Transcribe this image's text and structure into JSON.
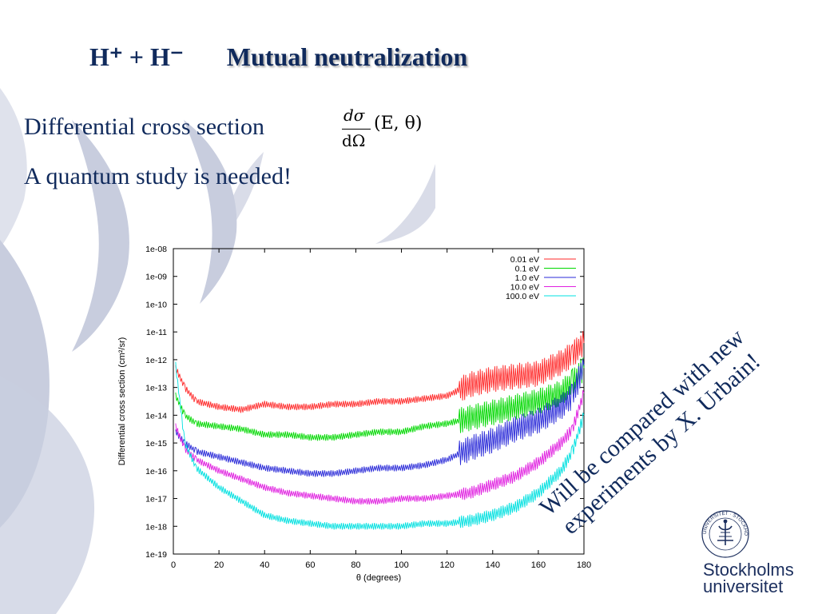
{
  "slide": {
    "title_formula": "H⁺ + H⁻",
    "title": "Mutual neutralization",
    "line1": "Differential cross section",
    "line2": "A quantum study is needed!",
    "equation": {
      "numerator": "dσ",
      "denominator": "dΩ",
      "args": "(E, θ)"
    },
    "note_line1": "Will be compared with new",
    "note_line2": "experiments by X. Urbain!",
    "logo": {
      "name_line1": "Stockholms",
      "name_line2": "universitet",
      "seal_text": "UNIVERSITET · STOCKHOLMS"
    }
  },
  "colors": {
    "text": "#102a5c",
    "bg_shape": "#bfc5d9"
  },
  "chart_data": {
    "type": "line",
    "xlabel": "θ (degrees)",
    "ylabel": "Differential cross section (cm²/sr)",
    "xlim": [
      0,
      180
    ],
    "ylim_log10": [
      -19,
      -8
    ],
    "x_ticks": [
      "0",
      "20",
      "40",
      "60",
      "80",
      "100",
      "120",
      "140",
      "160",
      "180"
    ],
    "y_ticks": [
      "1e-19",
      "1e-18",
      "1e-17",
      "1e-16",
      "1e-15",
      "1e-14",
      "1e-13",
      "1e-12",
      "1e-11",
      "1e-10",
      "1e-09",
      "1e-08"
    ],
    "y_scale": "log",
    "legend_position": "top-right",
    "grid": false,
    "series": [
      {
        "name": "0.01 eV",
        "color": "#ff2a2a",
        "points": [
          [
            1,
            -12.3
          ],
          [
            5,
            -13.0
          ],
          [
            10,
            -13.5
          ],
          [
            20,
            -13.7
          ],
          [
            30,
            -13.8
          ],
          [
            40,
            -13.6
          ],
          [
            50,
            -13.7
          ],
          [
            60,
            -13.7
          ],
          [
            70,
            -13.6
          ],
          [
            80,
            -13.6
          ],
          [
            90,
            -13.5
          ],
          [
            100,
            -13.5
          ],
          [
            110,
            -13.4
          ],
          [
            120,
            -13.3
          ],
          [
            130,
            -12.9
          ],
          [
            140,
            -12.7
          ],
          [
            150,
            -12.6
          ],
          [
            160,
            -12.5
          ],
          [
            170,
            -12.1
          ],
          [
            175,
            -11.8
          ],
          [
            180,
            -11.4
          ]
        ]
      },
      {
        "name": "0.1 eV",
        "color": "#00d800",
        "points": [
          [
            1,
            -13.3
          ],
          [
            5,
            -14.0
          ],
          [
            10,
            -14.3
          ],
          [
            20,
            -14.4
          ],
          [
            30,
            -14.5
          ],
          [
            40,
            -14.7
          ],
          [
            50,
            -14.7
          ],
          [
            60,
            -14.8
          ],
          [
            70,
            -14.8
          ],
          [
            80,
            -14.7
          ],
          [
            90,
            -14.6
          ],
          [
            100,
            -14.6
          ],
          [
            110,
            -14.4
          ],
          [
            120,
            -14.3
          ],
          [
            130,
            -14.1
          ],
          [
            140,
            -13.9
          ],
          [
            150,
            -13.7
          ],
          [
            160,
            -13.5
          ],
          [
            170,
            -13.2
          ],
          [
            175,
            -12.8
          ],
          [
            180,
            -12.3
          ]
        ]
      },
      {
        "name": "1.0 eV",
        "color": "#2a2ad8",
        "points": [
          [
            1,
            -14.6
          ],
          [
            5,
            -15.0
          ],
          [
            10,
            -15.3
          ],
          [
            20,
            -15.5
          ],
          [
            30,
            -15.7
          ],
          [
            40,
            -15.9
          ],
          [
            50,
            -16.0
          ],
          [
            60,
            -16.1
          ],
          [
            70,
            -16.1
          ],
          [
            80,
            -16.0
          ],
          [
            90,
            -15.9
          ],
          [
            100,
            -15.9
          ],
          [
            110,
            -15.8
          ],
          [
            120,
            -15.6
          ],
          [
            130,
            -15.2
          ],
          [
            140,
            -14.9
          ],
          [
            150,
            -14.5
          ],
          [
            160,
            -14.2
          ],
          [
            170,
            -13.7
          ],
          [
            175,
            -13.3
          ],
          [
            180,
            -12.2
          ]
        ]
      },
      {
        "name": "10.0 eV",
        "color": "#e020e0",
        "points": [
          [
            1,
            -14.4
          ],
          [
            5,
            -15.2
          ],
          [
            10,
            -15.6
          ],
          [
            20,
            -16.0
          ],
          [
            30,
            -16.3
          ],
          [
            40,
            -16.6
          ],
          [
            50,
            -16.8
          ],
          [
            60,
            -16.9
          ],
          [
            70,
            -17.0
          ],
          [
            80,
            -17.1
          ],
          [
            90,
            -17.1
          ],
          [
            100,
            -17.0
          ],
          [
            110,
            -17.0
          ],
          [
            120,
            -16.9
          ],
          [
            130,
            -16.8
          ],
          [
            140,
            -16.5
          ],
          [
            150,
            -16.2
          ],
          [
            160,
            -15.7
          ],
          [
            170,
            -15.0
          ],
          [
            175,
            -14.5
          ],
          [
            180,
            -13.2
          ]
        ]
      },
      {
        "name": "100.0 eV",
        "color": "#00e0e0",
        "points": [
          [
            1,
            -12.2
          ],
          [
            5,
            -15.0
          ],
          [
            10,
            -15.9
          ],
          [
            20,
            -16.6
          ],
          [
            30,
            -17.1
          ],
          [
            40,
            -17.6
          ],
          [
            50,
            -17.8
          ],
          [
            60,
            -17.9
          ],
          [
            70,
            -18.0
          ],
          [
            80,
            -18.0
          ],
          [
            90,
            -18.0
          ],
          [
            100,
            -18.0
          ],
          [
            110,
            -17.9
          ],
          [
            120,
            -17.9
          ],
          [
            130,
            -17.8
          ],
          [
            140,
            -17.6
          ],
          [
            150,
            -17.3
          ],
          [
            160,
            -16.8
          ],
          [
            170,
            -16.0
          ],
          [
            175,
            -15.3
          ],
          [
            180,
            -14.0
          ]
        ]
      }
    ]
  }
}
